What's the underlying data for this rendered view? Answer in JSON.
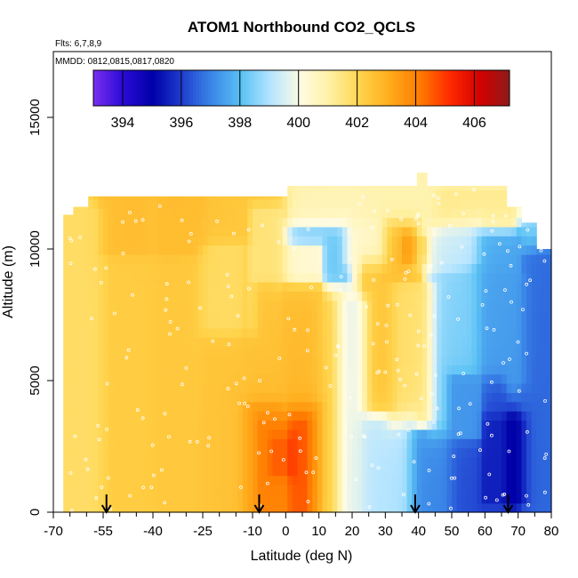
{
  "chart_data": {
    "type": "heatmap",
    "title": "ATOM1 Northbound CO2_QCLS",
    "subtitle_flights": "Flts: 6,7,8,9",
    "subtitle_dates": "MMDD: 0812,0815,0817,0820",
    "xlabel": "Latitude (deg N)",
    "ylabel": "Altitude (m)",
    "xlim": [
      -70,
      80
    ],
    "ylim": [
      0,
      17500
    ],
    "x_ticks": [
      -70,
      -55,
      -40,
      -25,
      -10,
      0,
      10,
      20,
      30,
      40,
      50,
      60,
      70,
      80
    ],
    "x_tick_labels": [
      "-70",
      "-55",
      "-40",
      "-25",
      "-10",
      "0",
      "10",
      "20",
      "30",
      "40",
      "50",
      "60",
      "70",
      "80"
    ],
    "x_minor_ticks": [
      -65,
      -60,
      -50,
      -45,
      -35,
      -30,
      -20,
      -15,
      -5,
      5,
      15,
      25,
      35,
      45,
      55,
      65,
      75
    ],
    "y_ticks": [
      0,
      5000,
      10000,
      15000
    ],
    "y_tick_labels": [
      "0",
      "5000",
      "10000",
      "15000"
    ],
    "colorbar": {
      "range": [
        393,
        407.2
      ],
      "ticks": [
        394,
        396,
        398,
        400,
        402,
        404,
        406
      ],
      "tick_labels": [
        "394",
        "396",
        "398",
        "400",
        "402",
        "404",
        "406"
      ],
      "colors": [
        "#7a2ef0",
        "#2a0bd6",
        "#0000a8",
        "#1f3fcf",
        "#3b88e8",
        "#5cc3f5",
        "#b9e6ff",
        "#fffbe0",
        "#fff0a0",
        "#ffd34a",
        "#ffaa1a",
        "#ff7a00",
        "#ff2a00",
        "#d40000",
        "#8e1a1a"
      ]
    },
    "profile_arrows_lat": [
      -54,
      -8,
      39,
      67
    ],
    "sample_regions": [
      {
        "lat": [
          -67,
          -55
        ],
        "alt": [
          0,
          11500
        ],
        "value": 401.8
      },
      {
        "lat": [
          -55,
          -40
        ],
        "alt": [
          0,
          12000
        ],
        "value": 402.3
      },
      {
        "lat": [
          -40,
          -25
        ],
        "alt": [
          0,
          12000
        ],
        "value": 402.4
      },
      {
        "lat": [
          -25,
          -12
        ],
        "alt": [
          0,
          12000
        ],
        "value": 402.5
      },
      {
        "lat": [
          -12,
          0
        ],
        "alt": [
          0,
          12000
        ],
        "value": 402.6
      },
      {
        "lat": [
          -55,
          -25
        ],
        "alt": [
          10000,
          12000
        ],
        "value": 403.0
      },
      {
        "lat": [
          -25,
          -10
        ],
        "alt": [
          7000,
          10000
        ],
        "value": 401.2
      },
      {
        "lat": [
          -10,
          -2
        ],
        "alt": [
          9000,
          11500
        ],
        "value": 400.6
      },
      {
        "lat": [
          -12,
          10
        ],
        "alt": [
          0,
          4000
        ],
        "value": 404.0
      },
      {
        "lat": [
          -8,
          6
        ],
        "alt": [
          0,
          3500
        ],
        "value": 405.3
      },
      {
        "lat": [
          -4,
          2
        ],
        "alt": [
          1500,
          2800
        ],
        "value": 406.2
      },
      {
        "lat": [
          0,
          10
        ],
        "alt": [
          4000,
          10000
        ],
        "value": 402.8
      },
      {
        "lat": [
          10,
          16
        ],
        "alt": [
          0,
          8000
        ],
        "value": 402.2
      },
      {
        "lat": [
          16,
          24
        ],
        "alt": [
          0,
          8000
        ],
        "value": 399.6
      },
      {
        "lat": [
          24,
          32
        ],
        "alt": [
          4000,
          9500
        ],
        "value": 402.6
      },
      {
        "lat": [
          24,
          38
        ],
        "alt": [
          0,
          3500
        ],
        "value": 399.0
      },
      {
        "lat": [
          32,
          44
        ],
        "alt": [
          3500,
          8500
        ],
        "value": 401.8
      },
      {
        "lat": [
          38,
          50
        ],
        "alt": [
          0,
          3000
        ],
        "value": 397.0
      },
      {
        "lat": [
          44,
          58
        ],
        "alt": [
          3000,
          9000
        ],
        "value": 398.4
      },
      {
        "lat": [
          50,
          65
        ],
        "alt": [
          0,
          5000
        ],
        "value": 396.2
      },
      {
        "lat": [
          58,
          72
        ],
        "alt": [
          5000,
          9000
        ],
        "value": 397.4
      },
      {
        "lat": [
          60,
          72
        ],
        "alt": [
          500,
          3500
        ],
        "value": 394.8
      },
      {
        "lat": [
          72,
          80
        ],
        "alt": [
          0,
          9500
        ],
        "value": 396.6
      },
      {
        "lat": [
          0,
          18
        ],
        "alt": [
          9000,
          10800
        ],
        "value": 397.8
      },
      {
        "lat": [
          18,
          30
        ],
        "alt": [
          9500,
          11000
        ],
        "value": 400.4
      },
      {
        "lat": [
          30,
          40
        ],
        "alt": [
          9000,
          11000
        ],
        "value": 402.8
      },
      {
        "lat": [
          36,
          42
        ],
        "alt": [
          9700,
          10500
        ],
        "value": 404.3
      },
      {
        "lat": [
          40,
          58
        ],
        "alt": [
          9500,
          10800
        ],
        "value": 399.2
      },
      {
        "lat": [
          58,
          70
        ],
        "alt": [
          9200,
          10500
        ],
        "value": 397.5
      },
      {
        "lat": [
          0,
          45
        ],
        "alt": [
          11000,
          12400
        ],
        "value": 400.8
      },
      {
        "lat": [
          45,
          68
        ],
        "alt": [
          11000,
          12000
        ],
        "value": 401.4
      }
    ]
  }
}
